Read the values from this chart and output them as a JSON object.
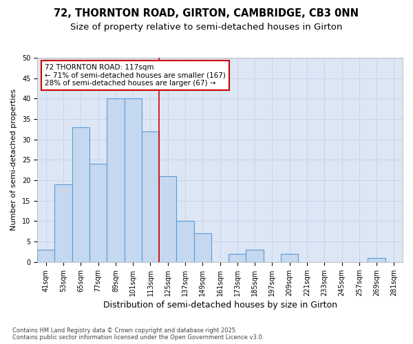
{
  "title1": "72, THORNTON ROAD, GIRTON, CAMBRIDGE, CB3 0NN",
  "title2": "Size of property relative to semi-detached houses in Girton",
  "xlabel": "Distribution of semi-detached houses by size in Girton",
  "ylabel": "Number of semi-detached properties",
  "categories": [
    "41sqm",
    "53sqm",
    "65sqm",
    "77sqm",
    "89sqm",
    "101sqm",
    "113sqm",
    "125sqm",
    "137sqm",
    "149sqm",
    "161sqm",
    "173sqm",
    "185sqm",
    "197sqm",
    "209sqm",
    "221sqm",
    "233sqm",
    "245sqm",
    "257sqm",
    "269sqm",
    "281sqm"
  ],
  "values": [
    3,
    19,
    33,
    24,
    40,
    40,
    32,
    21,
    10,
    7,
    0,
    2,
    3,
    0,
    2,
    0,
    0,
    0,
    0,
    1,
    0
  ],
  "bar_color": "#c5d8f0",
  "bar_edge_color": "#5b9bd5",
  "grid_color": "#c8d4e8",
  "background_color": "#dce6f5",
  "property_line_x": 6.5,
  "annotation_text": "72 THORNTON ROAD: 117sqm\n← 71% of semi-detached houses are smaller (167)\n28% of semi-detached houses are larger (67) →",
  "annotation_box_color": "#ffffff",
  "annotation_edge_color": "#cc0000",
  "ylim": [
    0,
    50
  ],
  "yticks": [
    0,
    5,
    10,
    15,
    20,
    25,
    30,
    35,
    40,
    45,
    50
  ],
  "footer": "Contains HM Land Registry data © Crown copyright and database right 2025.\nContains public sector information licensed under the Open Government Licence v3.0.",
  "title1_fontsize": 10.5,
  "title2_fontsize": 9.5,
  "xlabel_fontsize": 9,
  "ylabel_fontsize": 8,
  "tick_fontsize": 7,
  "annotation_fontsize": 7.5,
  "footer_fontsize": 6
}
